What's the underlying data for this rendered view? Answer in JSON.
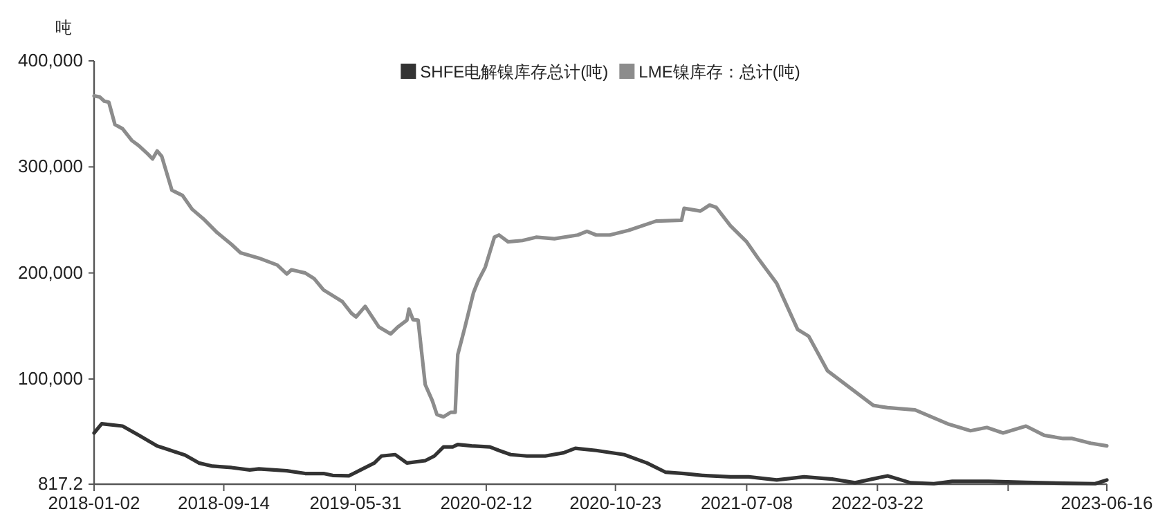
{
  "chart_data": {
    "type": "line",
    "ylabel": "吨",
    "legend": "top",
    "grid": false,
    "marker": "none",
    "line_style": "solid",
    "xlim": [
      "2018-01-02",
      "2023-06-16"
    ],
    "xticks": [
      {
        "value": "2018-01-02",
        "label": "2018-01-02"
      },
      {
        "value": "2018-09-14",
        "label": "2018-09-14"
      },
      {
        "value": "2019-05-31",
        "label": "2019-05-31"
      },
      {
        "value": "2020-02-12",
        "label": "2020-02-12"
      },
      {
        "value": "2020-10-23",
        "label": "2020-10-23"
      },
      {
        "value": "2021-07-08",
        "label": "2021-07-08"
      },
      {
        "value": "2022-03-22",
        "label": "2022-03-22"
      },
      {
        "value": "2022-12-04",
        "label": null
      },
      {
        "value": "2023-06-16",
        "label": "2023-06-16"
      }
    ],
    "ylim": [
      817.2,
      400000
    ],
    "yticks": [
      817.2,
      {
        "value": 100000,
        "label": "100,000"
      },
      {
        "value": 200000,
        "label": "200,000"
      },
      {
        "value": 300000,
        "label": "300,000"
      },
      {
        "value": 400000,
        "label": "400,000"
      }
    ],
    "series": [
      {
        "name": "SHFE电解镍库存总计(吨)",
        "color": "#333333",
        "x": [
          "2018-01-02",
          "2018-01-17",
          "2018-02-27",
          "2018-03-31",
          "2018-05-06",
          "2018-05-25",
          "2018-06-30",
          "2018-07-27",
          "2018-08-23",
          "2018-09-29",
          "2018-11-04",
          "2018-11-22",
          "2019-01-16",
          "2019-02-21",
          "2019-03-29",
          "2019-04-16",
          "2019-05-18",
          "2019-06-10",
          "2019-07-07",
          "2019-07-21",
          "2019-08-17",
          "2019-09-09",
          "2019-10-15",
          "2019-11-02",
          "2019-11-20",
          "2019-12-08",
          "2019-12-18",
          "2020-01-14",
          "2020-02-19",
          "2020-03-08",
          "2020-03-31",
          "2020-05-02",
          "2020-06-07",
          "2020-07-13",
          "2020-08-05",
          "2020-09-15",
          "2020-11-09",
          "2020-12-24",
          "2021-01-29",
          "2021-03-07",
          "2021-04-12",
          "2021-06-06",
          "2021-07-12",
          "2021-09-05",
          "2021-10-29",
          "2021-12-23",
          "2022-02-06",
          "2022-04-11",
          "2022-05-26",
          "2022-07-11",
          "2022-08-16",
          "2022-10-27",
          "2023-01-08",
          "2023-03-22",
          "2023-05-24",
          "2023-06-16"
        ],
        "values": [
          49100,
          57800,
          55600,
          46900,
          36900,
          33900,
          28200,
          20800,
          17800,
          16500,
          14300,
          15200,
          13500,
          10900,
          10900,
          9100,
          8700,
          14300,
          20800,
          27400,
          28700,
          20800,
          23000,
          27400,
          36000,
          36000,
          38200,
          36900,
          36000,
          32600,
          28700,
          27400,
          27400,
          30400,
          34700,
          32600,
          28700,
          20800,
          12200,
          10900,
          9100,
          7800,
          7800,
          4800,
          7800,
          5600,
          2200,
          8700,
          2200,
          1300,
          3500,
          3500,
          2600,
          1700,
          1300,
          4800
        ]
      },
      {
        "name": "LME镍库存：总计(吨)",
        "color": "#8c8c8c",
        "x": [
          "2018-01-02",
          "2018-01-13",
          "2018-01-22",
          "2018-01-31",
          "2018-02-12",
          "2018-02-27",
          "2018-03-17",
          "2018-03-31",
          "2018-04-18",
          "2018-04-27",
          "2018-05-06",
          "2018-05-15",
          "2018-05-25",
          "2018-06-04",
          "2018-06-25",
          "2018-07-14",
          "2018-08-05",
          "2018-09-01",
          "2018-09-29",
          "2018-10-17",
          "2018-11-22",
          "2018-12-28",
          "2019-01-16",
          "2019-01-25",
          "2019-02-21",
          "2019-03-11",
          "2019-03-29",
          "2019-05-05",
          "2019-05-23",
          "2019-06-01",
          "2019-06-19",
          "2019-06-28",
          "2019-07-16",
          "2019-08-08",
          "2019-08-22",
          "2019-09-09",
          "2019-09-13",
          "2019-09-21",
          "2019-10-01",
          "2019-10-15",
          "2019-10-29",
          "2019-11-07",
          "2019-11-20",
          "2019-12-04",
          "2019-12-13",
          "2019-12-18",
          "2019-12-31",
          "2020-01-18",
          "2020-01-27",
          "2020-02-10",
          "2020-02-28",
          "2020-03-08",
          "2020-03-26",
          "2020-04-23",
          "2020-05-20",
          "2020-06-25",
          "2020-08-10",
          "2020-08-28",
          "2020-09-15",
          "2020-10-12",
          "2020-11-18",
          "2021-01-11",
          "2021-03-02",
          "2021-03-07",
          "2021-04-08",
          "2021-04-26",
          "2021-05-09",
          "2021-06-06",
          "2021-07-08",
          "2021-07-30",
          "2021-09-05",
          "2021-10-16",
          "2021-11-07",
          "2021-12-14",
          "2022-01-19",
          "2022-03-14",
          "2022-04-11",
          "2022-06-04",
          "2022-08-07",
          "2022-09-21",
          "2022-10-23",
          "2022-11-24",
          "2023-01-08",
          "2023-02-13",
          "2023-03-22",
          "2023-04-09",
          "2023-05-15",
          "2023-06-16"
        ],
        "values": [
          367000,
          366000,
          362000,
          361000,
          340000,
          336000,
          325000,
          320000,
          312000,
          307500,
          315000,
          310000,
          294000,
          278000,
          273000,
          260000,
          251000,
          238000,
          227000,
          219000,
          214000,
          207500,
          199000,
          203000,
          200000,
          194500,
          184000,
          173000,
          162000,
          158500,
          168500,
          162000,
          149000,
          142500,
          149000,
          155500,
          166000,
          156000,
          155500,
          94700,
          79500,
          66500,
          64300,
          68600,
          68600,
          123000,
          146800,
          181500,
          192400,
          205400,
          233700,
          235800,
          229300,
          230600,
          233700,
          232300,
          235800,
          239300,
          235800,
          235800,
          240200,
          248900,
          249700,
          261000,
          258400,
          264000,
          261900,
          244500,
          229300,
          214100,
          190200,
          146800,
          140300,
          107700,
          94700,
          75100,
          73000,
          70800,
          57800,
          51200,
          54300,
          49100,
          55600,
          46900,
          43900,
          43900,
          39500,
          36900
        ]
      }
    ]
  }
}
